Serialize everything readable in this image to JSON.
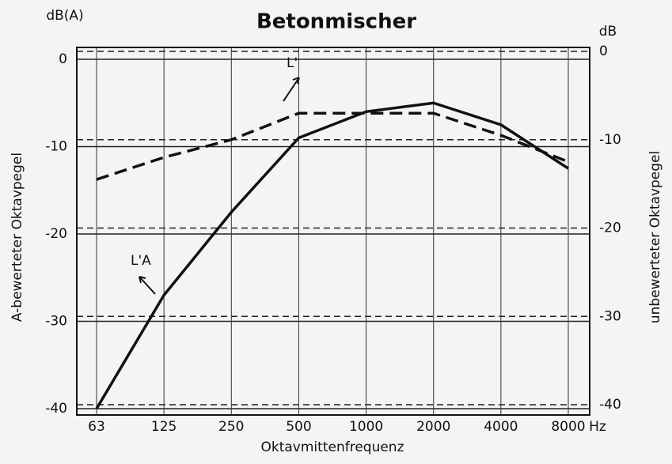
{
  "chart_data": {
    "type": "line",
    "title": "Betonmischer",
    "y_unit": "dB(A)",
    "y2_unit": "dB",
    "ylabel": "A-bewerteter Oktavpegel",
    "y2label": "unbewerteter Oktavpegel",
    "xlabel": "Oktavmittenfrequenz",
    "x_unit": "Hz",
    "categories": [
      "63",
      "125",
      "250",
      "500",
      "1000",
      "2000",
      "4000",
      "8000"
    ],
    "series": [
      {
        "name": "L'A",
        "color": "#111111",
        "dash": false,
        "values": [
          -40,
          -27,
          -17.5,
          -9,
          -6,
          -5,
          -7.5,
          -12.5
        ]
      },
      {
        "name": "L'",
        "color": "#111111",
        "dash": true,
        "axis": "y2",
        "values": [
          -14.5,
          -12,
          -10,
          -7,
          -7,
          -7,
          -9.5,
          -12.5
        ]
      }
    ],
    "ylim": [
      -40,
      0
    ],
    "yticks": [
      -40,
      -30,
      -20,
      -10,
      0
    ],
    "y2lim": [
      -40,
      0
    ],
    "y2ticks": [
      -40,
      -30,
      -20,
      -10,
      0
    ],
    "grid": true
  }
}
